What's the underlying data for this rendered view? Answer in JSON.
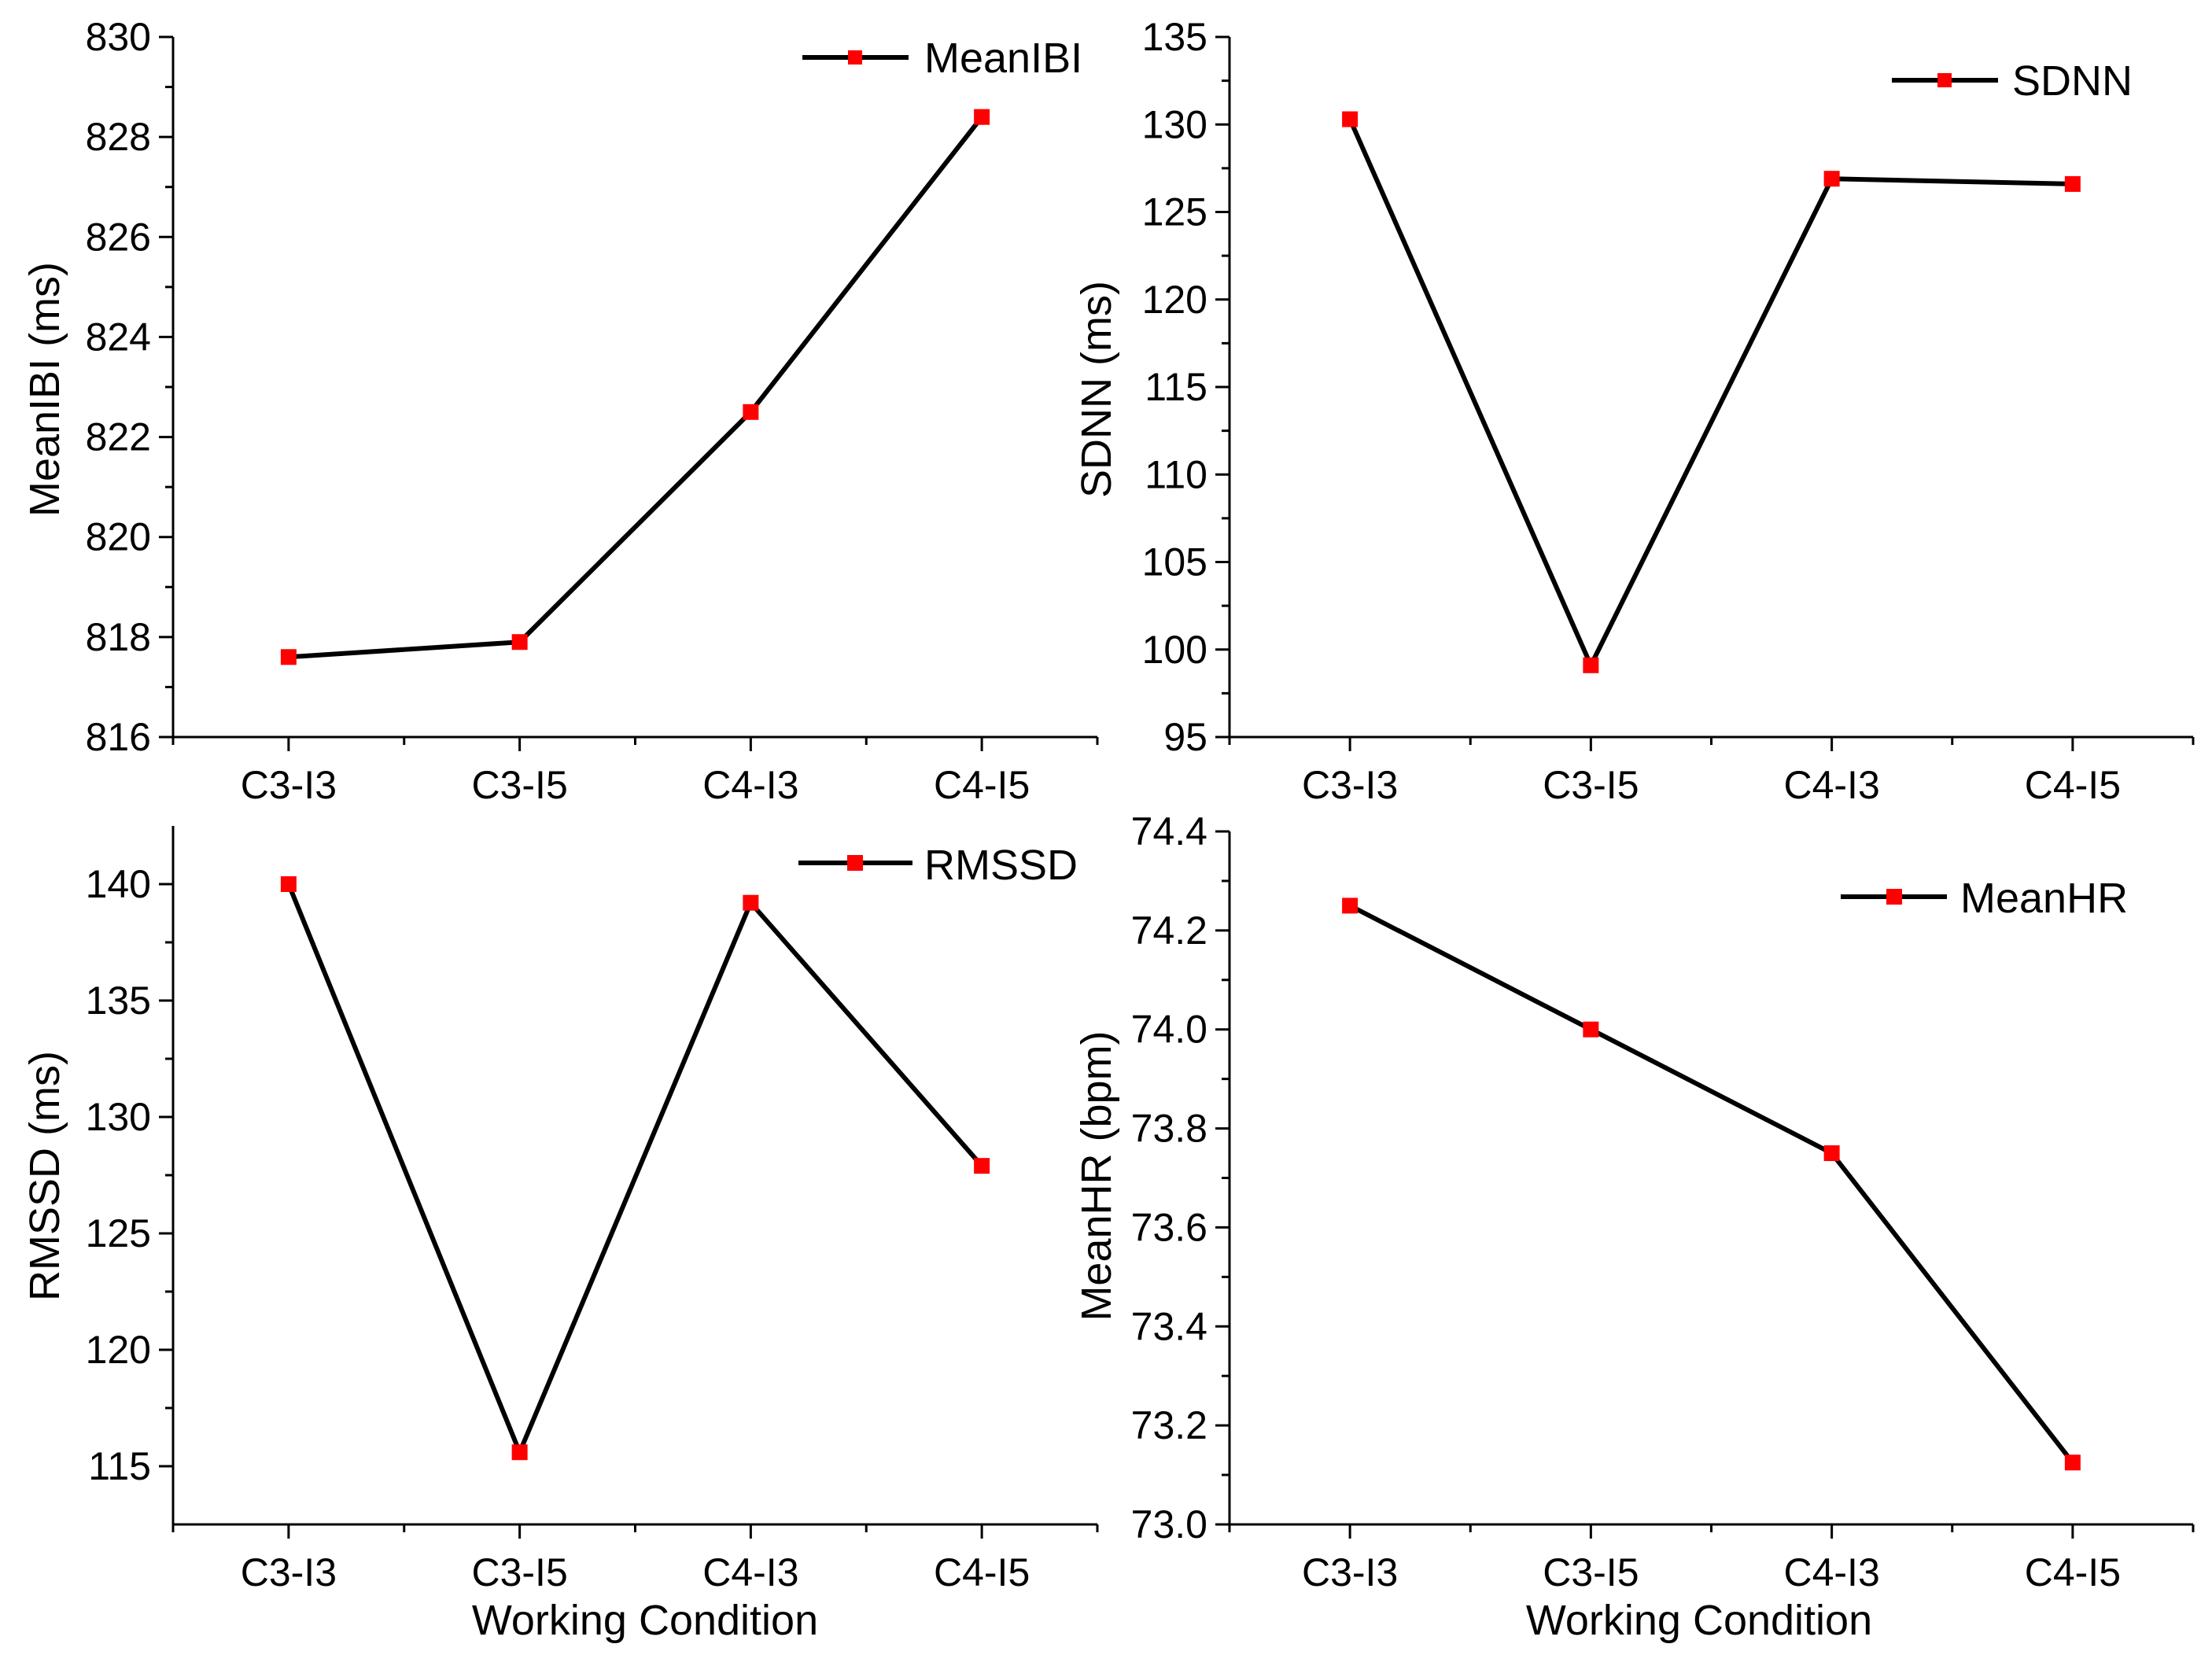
{
  "figure": {
    "background": "#ffffff"
  },
  "colors": {
    "line": "#000000",
    "marker": "#ff0000",
    "axis": "#000000"
  },
  "chart_data": [
    {
      "id": "meanibi",
      "type": "line",
      "title": "",
      "categories": [
        "C3-I3",
        "C3-I5",
        "C4-I3",
        "C4-I5"
      ],
      "series": [
        {
          "name": "MeanIBI",
          "values": [
            817.6,
            817.9,
            822.5,
            828.4
          ]
        }
      ],
      "xlabel": "",
      "ylabel": "MeanIBI (ms)",
      "ylim": [
        816,
        830
      ],
      "yticks": [
        816,
        818,
        820,
        822,
        824,
        826,
        828,
        830
      ],
      "ytick_labels": [
        "816",
        "818",
        "820",
        "822",
        "824",
        "826",
        "828",
        "830"
      ],
      "legend": "top-right"
    },
    {
      "id": "sdnn",
      "type": "line",
      "title": "",
      "categories": [
        "C3-I3",
        "C3-I5",
        "C4-I3",
        "C4-I5"
      ],
      "series": [
        {
          "name": "SDNN",
          "values": [
            130.3,
            99.1,
            126.9,
            126.6
          ]
        }
      ],
      "xlabel": "",
      "ylabel": "SDNN (ms)",
      "ylim": [
        95,
        135
      ],
      "yticks": [
        95,
        100,
        105,
        110,
        115,
        120,
        125,
        130,
        135
      ],
      "ytick_labels": [
        "95",
        "100",
        "105",
        "110",
        "115",
        "120",
        "125",
        "130",
        "135"
      ],
      "legend": "top-right"
    },
    {
      "id": "rmssd",
      "type": "line",
      "title": "",
      "categories": [
        "C3-I3",
        "C3-I5",
        "C4-I3",
        "C4-I5"
      ],
      "series": [
        {
          "name": "RMSSD",
          "values": [
            140.0,
            115.6,
            139.2,
            127.9
          ]
        }
      ],
      "xlabel": "Working Condition",
      "ylabel": "RMSSD (ms)",
      "ylim": [
        112.5,
        142.5
      ],
      "yticks": [
        115,
        120,
        125,
        130,
        135,
        140
      ],
      "ytick_labels": [
        "115",
        "120",
        "125",
        "130",
        "135",
        "140"
      ],
      "legend": "top-right"
    },
    {
      "id": "meanhr",
      "type": "line",
      "title": "",
      "categories": [
        "C3-I3",
        "C3-I5",
        "C4-I3",
        "C4-I5"
      ],
      "series": [
        {
          "name": "MeanHR",
          "values": [
            74.25,
            74.0,
            73.75,
            73.125
          ]
        }
      ],
      "xlabel": "Working Condition",
      "ylabel": "MeanHR (bpm)",
      "ylim": [
        73.0,
        74.4
      ],
      "yticks": [
        73.0,
        73.2,
        73.4,
        73.6,
        73.8,
        74.0,
        74.2,
        74.4
      ],
      "ytick_labels": [
        "73.0",
        "73.2",
        "73.4",
        "73.6",
        "73.8",
        "74.0",
        "74.2",
        "74.4"
      ],
      "legend": "top-right"
    }
  ]
}
